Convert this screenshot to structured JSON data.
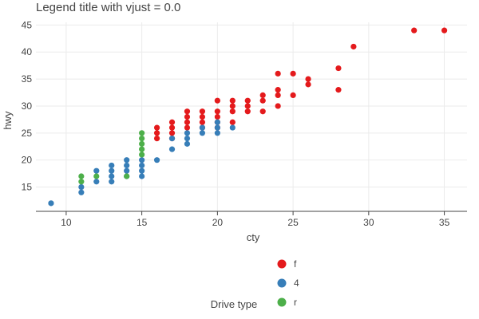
{
  "chart_data": {
    "type": "scatter",
    "title": "Legend title with vjust = 0.0",
    "xlabel": "cty",
    "ylabel": "hwy",
    "xlim": [
      8,
      36.5
    ],
    "ylim": [
      10.5,
      45.5
    ],
    "x_ticks": [
      10,
      15,
      20,
      25,
      30,
      35
    ],
    "y_ticks": [
      15,
      20,
      25,
      30,
      35,
      40,
      45
    ],
    "grid": true,
    "legend": {
      "title": "Drive type",
      "position": "bottom"
    },
    "series": [
      {
        "name": "f",
        "color": "#e41a1c",
        "points": [
          [
            16,
            24
          ],
          [
            16,
            25
          ],
          [
            16,
            26
          ],
          [
            17,
            24
          ],
          [
            17,
            25
          ],
          [
            17,
            26
          ],
          [
            17,
            27
          ],
          [
            18,
            26
          ],
          [
            18,
            27
          ],
          [
            18,
            28
          ],
          [
            18,
            29
          ],
          [
            19,
            26
          ],
          [
            19,
            27
          ],
          [
            19,
            28
          ],
          [
            19,
            29
          ],
          [
            20,
            26
          ],
          [
            20,
            27
          ],
          [
            20,
            28
          ],
          [
            20,
            29
          ],
          [
            20,
            31
          ],
          [
            21,
            27
          ],
          [
            21,
            29
          ],
          [
            21,
            30
          ],
          [
            21,
            31
          ],
          [
            22,
            29
          ],
          [
            22,
            30
          ],
          [
            22,
            31
          ],
          [
            23,
            29
          ],
          [
            23,
            31
          ],
          [
            23,
            32
          ],
          [
            24,
            30
          ],
          [
            24,
            32
          ],
          [
            24,
            33
          ],
          [
            24,
            36
          ],
          [
            25,
            32
          ],
          [
            25,
            36
          ],
          [
            26,
            34
          ],
          [
            26,
            35
          ],
          [
            28,
            33
          ],
          [
            28,
            37
          ],
          [
            29,
            41
          ],
          [
            33,
            44
          ],
          [
            35,
            44
          ]
        ]
      },
      {
        "name": "4",
        "color": "#377eb8",
        "points": [
          [
            9,
            12
          ],
          [
            11,
            14
          ],
          [
            11,
            15
          ],
          [
            12,
            16
          ],
          [
            12,
            18
          ],
          [
            13,
            16
          ],
          [
            13,
            17
          ],
          [
            13,
            18
          ],
          [
            13,
            19
          ],
          [
            14,
            17
          ],
          [
            14,
            18
          ],
          [
            14,
            19
          ],
          [
            14,
            20
          ],
          [
            15,
            17
          ],
          [
            15,
            18
          ],
          [
            15,
            19
          ],
          [
            15,
            20
          ],
          [
            16,
            20
          ],
          [
            17,
            22
          ],
          [
            17,
            24
          ],
          [
            18,
            23
          ],
          [
            18,
            24
          ],
          [
            18,
            25
          ],
          [
            19,
            25
          ],
          [
            19,
            26
          ],
          [
            20,
            25
          ],
          [
            20,
            26
          ],
          [
            20,
            27
          ],
          [
            21,
            26
          ]
        ]
      },
      {
        "name": "r",
        "color": "#4daf4a",
        "points": [
          [
            11,
            16
          ],
          [
            11,
            17
          ],
          [
            12,
            17
          ],
          [
            14,
            17
          ],
          [
            15,
            21
          ],
          [
            15,
            22
          ],
          [
            15,
            23
          ],
          [
            15,
            24
          ],
          [
            15,
            25
          ]
        ]
      }
    ]
  }
}
